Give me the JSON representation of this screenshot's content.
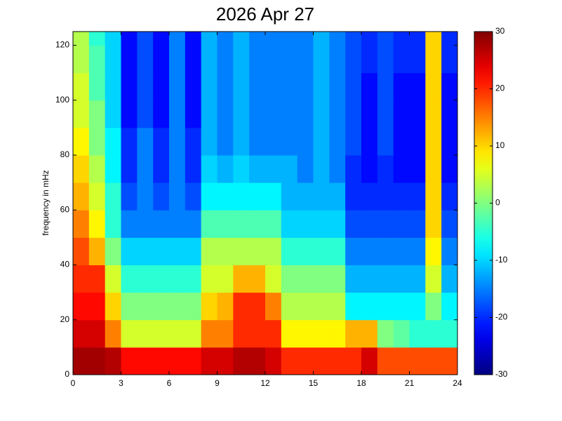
{
  "chart_data": {
    "type": "heatmap",
    "title": "2026 Apr 27",
    "ylabel": "frequency in mHz",
    "colormap": "jet",
    "xlim": [
      0,
      24
    ],
    "xticks": [
      0,
      3,
      6,
      9,
      12,
      15,
      18,
      21,
      24
    ],
    "ylim": [
      0,
      125
    ],
    "yticks": [
      0,
      20,
      40,
      60,
      80,
      100,
      120
    ],
    "zlim": [
      -30,
      30
    ],
    "zticks": [
      -30,
      -20,
      -10,
      0,
      10,
      20,
      30
    ],
    "x_bins": [
      0,
      1,
      2,
      3,
      4,
      5,
      6,
      7,
      8,
      9,
      10,
      11,
      12,
      13,
      14,
      15,
      16,
      17,
      18,
      19,
      20,
      21,
      22,
      23,
      24
    ],
    "y_bins": [
      0,
      10,
      20,
      30,
      40,
      50,
      60,
      70,
      80,
      90,
      100,
      110,
      120,
      125
    ],
    "z": [
      [
        28,
        28,
        27,
        22,
        22,
        22,
        22,
        22,
        25,
        25,
        27,
        27,
        25,
        20,
        20,
        20,
        20,
        20,
        25,
        18,
        18,
        18,
        18,
        18
      ],
      [
        25,
        25,
        15,
        5,
        5,
        5,
        5,
        5,
        15,
        15,
        20,
        20,
        20,
        8,
        8,
        8,
        8,
        12,
        12,
        0,
        -2,
        -5,
        -5,
        -5
      ],
      [
        22,
        22,
        10,
        0,
        0,
        0,
        0,
        0,
        10,
        12,
        20,
        20,
        15,
        3,
        3,
        3,
        3,
        -8,
        -8,
        -8,
        -8,
        -8,
        0,
        -8
      ],
      [
        20,
        20,
        5,
        -5,
        -5,
        -5,
        -5,
        -5,
        5,
        5,
        12,
        12,
        5,
        0,
        0,
        0,
        0,
        -12,
        -12,
        -12,
        -12,
        -12,
        5,
        -12
      ],
      [
        18,
        12,
        0,
        -10,
        -10,
        -10,
        -10,
        -10,
        3,
        3,
        3,
        3,
        3,
        -5,
        -5,
        -5,
        -5,
        -15,
        -15,
        -15,
        -15,
        -15,
        8,
        -15
      ],
      [
        15,
        8,
        -5,
        -15,
        -15,
        -15,
        -15,
        -15,
        -3,
        -3,
        -3,
        -3,
        -3,
        -10,
        -10,
        -10,
        -10,
        -18,
        -18,
        -18,
        -18,
        -18,
        10,
        -18
      ],
      [
        12,
        5,
        -5,
        -18,
        -15,
        -18,
        -15,
        -18,
        -8,
        -8,
        -8,
        -8,
        -8,
        -12,
        -12,
        -12,
        -12,
        -20,
        -20,
        -20,
        -20,
        -20,
        10,
        -20
      ],
      [
        10,
        3,
        -8,
        -20,
        -15,
        -20,
        -15,
        -20,
        -10,
        -12,
        -10,
        -12,
        -12,
        -12,
        -15,
        -12,
        -15,
        -20,
        -22,
        -20,
        -22,
        -22,
        10,
        -22
      ],
      [
        8,
        0,
        -8,
        -20,
        -15,
        -20,
        -15,
        -20,
        -12,
        -15,
        -12,
        -15,
        -15,
        -15,
        -15,
        -12,
        -15,
        -18,
        -22,
        -18,
        -22,
        -22,
        10,
        -22
      ],
      [
        5,
        0,
        -10,
        -22,
        -18,
        -22,
        -15,
        -22,
        -12,
        -15,
        -12,
        -15,
        -15,
        -15,
        -15,
        -12,
        -15,
        -18,
        -22,
        -18,
        -22,
        -22,
        10,
        -22
      ],
      [
        5,
        -3,
        -10,
        -22,
        -18,
        -22,
        -15,
        -22,
        -12,
        -15,
        -12,
        -15,
        -15,
        -15,
        -15,
        -12,
        -15,
        -18,
        -22,
        -18,
        -22,
        -22,
        10,
        -22
      ],
      [
        3,
        -3,
        -10,
        -22,
        -18,
        -22,
        -15,
        -22,
        -12,
        -15,
        -12,
        -15,
        -15,
        -15,
        -15,
        -12,
        -15,
        -18,
        -20,
        -18,
        -20,
        -20,
        10,
        -20
      ],
      [
        3,
        -5,
        -10,
        -22,
        -18,
        -22,
        -15,
        -22,
        -12,
        -15,
        -12,
        -15,
        -15,
        -15,
        -15,
        -12,
        -15,
        -18,
        -20,
        -18,
        -20,
        -20,
        10,
        -20
      ]
    ]
  }
}
